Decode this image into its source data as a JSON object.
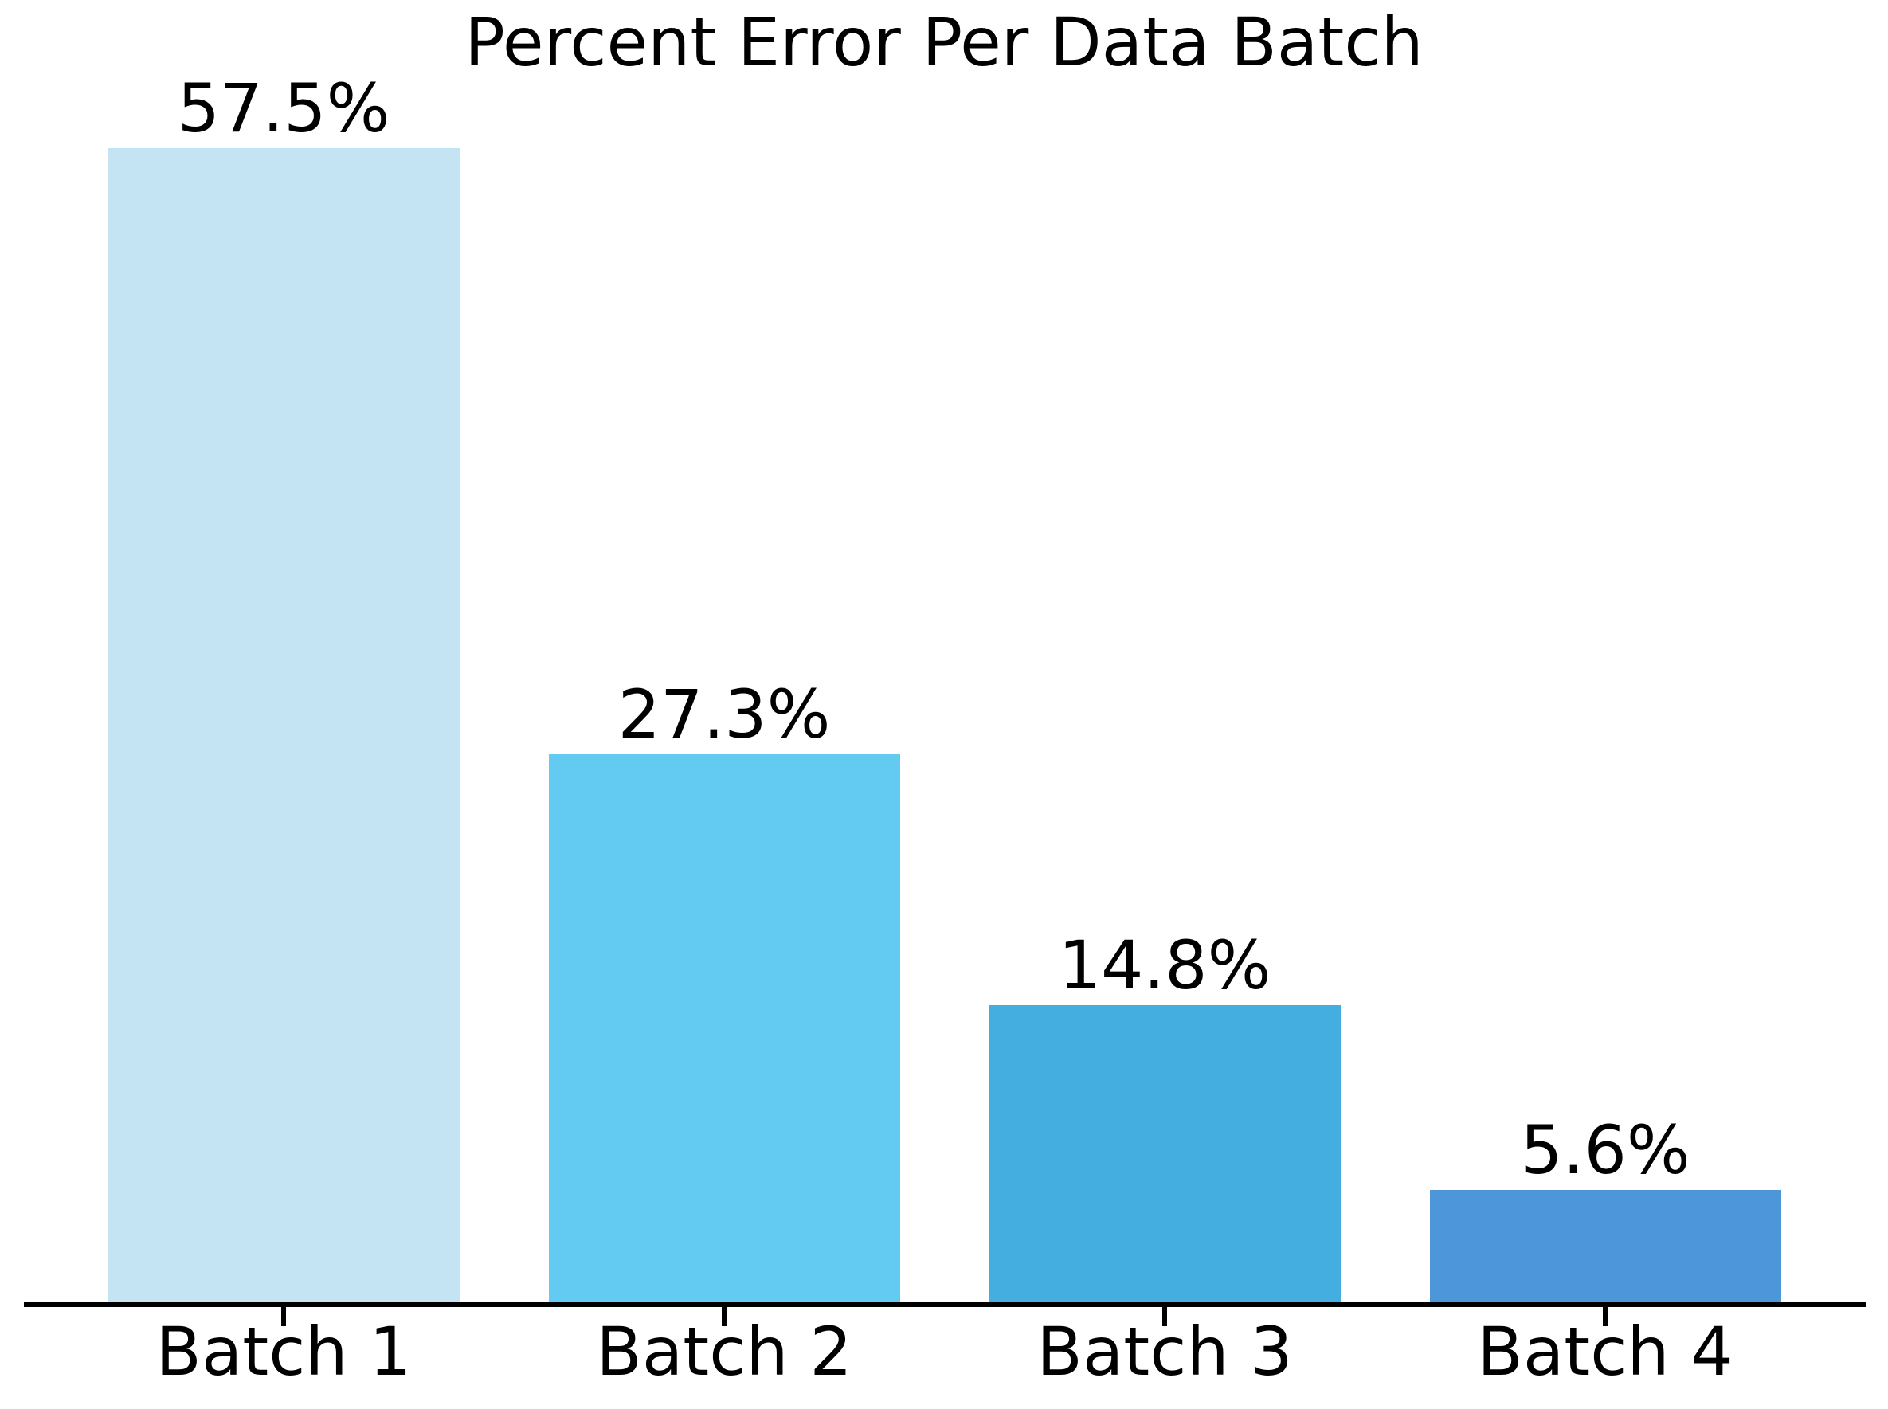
{
  "chart_data": {
    "type": "bar",
    "title": "Percent Error Per Data Batch",
    "categories": [
      "Batch 1",
      "Batch 2",
      "Batch 3",
      "Batch 4"
    ],
    "values": [
      57.5,
      27.3,
      14.8,
      5.6
    ],
    "value_labels": [
      "57.5%",
      "27.3%",
      "14.8%",
      "5.6%"
    ],
    "series": [
      {
        "name": "Percent Error",
        "values": [
          57.5,
          27.3,
          14.8,
          5.6
        ]
      }
    ],
    "bar_colors": [
      "#c4e4f4",
      "#63cbf2",
      "#45aee0",
      "#4e96da"
    ],
    "xlabel": "",
    "ylabel": "",
    "ylim": [
      0,
      64.7
    ],
    "grid": false,
    "legend": false,
    "y_axis_visible": false,
    "axis_color": "#000000",
    "text_color": "#000000",
    "background_color": "#ffffff"
  }
}
